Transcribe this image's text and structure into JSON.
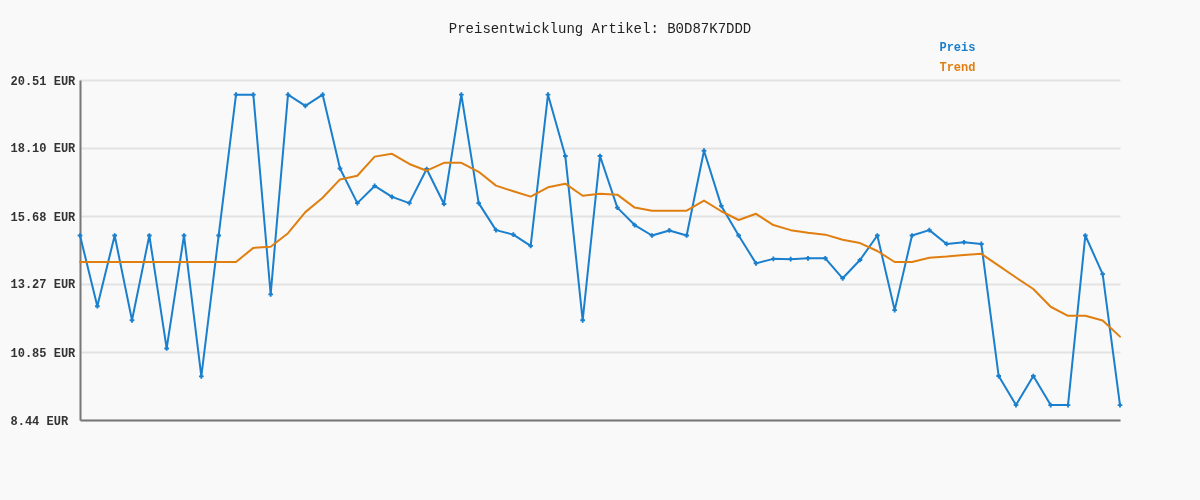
{
  "chart_data": {
    "type": "line",
    "title": "Preisentwicklung Artikel: B0D87K7DDD",
    "categories": [
      null,
      null,
      null,
      null,
      null,
      null,
      null,
      null,
      null,
      null,
      null,
      null,
      null,
      null,
      null,
      null,
      null,
      null,
      null,
      null,
      null,
      null,
      null,
      null,
      null,
      null,
      null,
      null,
      null,
      null,
      null,
      null,
      null,
      null,
      null,
      null,
      null,
      null,
      null,
      null,
      null,
      null,
      null,
      null,
      null,
      null,
      null,
      null,
      null,
      null,
      null,
      null,
      null,
      null,
      null,
      null,
      null,
      null,
      null,
      null,
      null
    ],
    "series": [
      {
        "name": "Preis",
        "color": "#1a7fcc",
        "marker": "cross",
        "values": [
          14.99,
          12.48,
          14.99,
          11.98,
          14.99,
          10.98,
          14.99,
          9.99,
          14.99,
          19.99,
          19.99,
          12.9,
          19.99,
          19.59,
          19.99,
          17.37,
          16.14,
          16.75,
          16.36,
          16.14,
          17.35,
          16.11,
          19.99,
          16.14,
          15.18,
          15.02,
          14.62,
          19.99,
          17.81,
          11.98,
          17.81,
          15.98,
          15.36,
          14.99,
          15.17,
          14.99,
          18.0,
          16.04,
          14.99,
          14.0,
          14.16,
          14.15,
          14.18,
          14.18,
          13.47,
          14.12,
          14.99,
          12.34,
          14.99,
          15.18,
          14.69,
          14.75,
          14.69,
          10.0,
          8.97,
          10.0,
          8.97,
          8.97,
          14.99,
          13.62,
          8.97
        ]
      },
      {
        "name": "Trend",
        "color": "#e07f10",
        "values": [
          14.05,
          14.05,
          14.05,
          14.05,
          14.05,
          14.05,
          14.05,
          14.05,
          14.05,
          14.05,
          14.55,
          14.59,
          15.07,
          15.82,
          16.33,
          16.98,
          17.11,
          17.79,
          17.89,
          17.53,
          17.29,
          17.57,
          17.57,
          17.25,
          16.76,
          16.56,
          16.37,
          16.7,
          16.83,
          16.4,
          16.47,
          16.44,
          15.98,
          15.87,
          15.87,
          15.87,
          16.23,
          15.85,
          15.54,
          15.76,
          15.36,
          15.18,
          15.09,
          15.02,
          14.84,
          14.72,
          14.44,
          14.05,
          14.05,
          14.2,
          14.24,
          14.3,
          14.34,
          13.92,
          13.5,
          13.09,
          12.46,
          12.14,
          12.14,
          11.97,
          11.4
        ]
      }
    ],
    "ylim": [
      8.44,
      20.51
    ],
    "yticks": [
      {
        "value": 8.44,
        "label": "8.44 EUR"
      },
      {
        "value": 10.85,
        "label": "10.85 EUR"
      },
      {
        "value": 13.27,
        "label": "13.27 EUR"
      },
      {
        "value": 15.68,
        "label": "15.68 EUR"
      },
      {
        "value": 18.1,
        "label": "18.10 EUR"
      },
      {
        "value": 20.51,
        "label": "20.51 EUR"
      }
    ],
    "tick_labels": "y",
    "grid": "y",
    "legend": "top right",
    "line_style": "solid"
  }
}
